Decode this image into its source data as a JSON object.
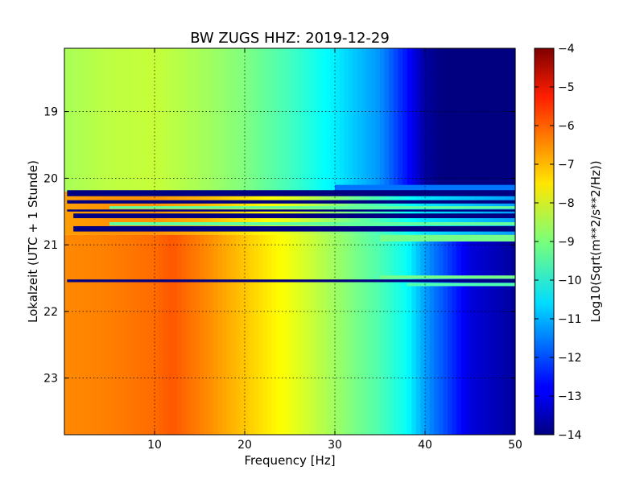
{
  "chart_data": {
    "type": "heatmap",
    "title": "BW ZUGS HHZ: 2019-12-29",
    "xlabel": "Frequency [Hz]",
    "ylabel": "Lokalzeit (UTC + 1 Stunde)",
    "xlim": [
      0,
      50
    ],
    "ylim": [
      18.05,
      23.85
    ],
    "y_inverted": true,
    "x_ticks": [
      10,
      20,
      30,
      40,
      50
    ],
    "y_ticks": [
      19,
      20,
      21,
      22,
      23
    ],
    "grid": true,
    "colormap": "jet",
    "colorbar": {
      "label": "Log10(Sqrt(m**2/s**2/Hz))",
      "range": [
        -14,
        -4
      ],
      "ticks": [
        -4,
        -5,
        -6,
        -7,
        -8,
        -9,
        -10,
        -11,
        -12,
        -13,
        -14
      ]
    },
    "profiles": [
      {
        "from": 18.05,
        "to": 20.2,
        "frequency": [
          0,
          5,
          10,
          15,
          20,
          25,
          30,
          35,
          38,
          40,
          42,
          50
        ],
        "value": [
          -8.6,
          -8.4,
          -8.3,
          -8.6,
          -9.0,
          -9.6,
          -10.4,
          -11.3,
          -12.6,
          -13.7,
          -14,
          -14
        ]
      },
      {
        "from": 20.2,
        "to": 20.85,
        "frequency": [
          0,
          5,
          10,
          15,
          20,
          25,
          30,
          35,
          40,
          50
        ],
        "value": [
          -6.8,
          -6.7,
          -6.7,
          -7.0,
          -7.5,
          -8.0,
          -8.8,
          -9.6,
          -10.5,
          -11.2
        ]
      },
      {
        "from": 20.85,
        "to": 23.85,
        "frequency": [
          0,
          5,
          10,
          12,
          15,
          20,
          25,
          30,
          35,
          38,
          40,
          43,
          45,
          50
        ],
        "value": [
          -6.6,
          -6.5,
          -6.3,
          -6.1,
          -6.5,
          -7.2,
          -7.9,
          -8.7,
          -9.5,
          -10.2,
          -11.2,
          -12.3,
          -13.1,
          -13.7
        ]
      }
    ],
    "gap_bands": [
      {
        "from": 20.18,
        "to": 20.27,
        "start_hz": 0.3
      },
      {
        "from": 20.33,
        "to": 20.38,
        "start_hz": 0.3
      },
      {
        "from": 20.47,
        "to": 20.5,
        "start_hz": 0.3
      },
      {
        "from": 20.53,
        "to": 20.6,
        "start_hz": 1
      },
      {
        "from": 20.72,
        "to": 20.8,
        "start_hz": 1
      },
      {
        "from": 21.52,
        "to": 21.56,
        "start_hz": 0.3
      }
    ],
    "highlight_bands": [
      {
        "from": 20.1,
        "to": 20.2,
        "from_hz": 30,
        "value": -11.6
      },
      {
        "from": 20.42,
        "to": 20.46,
        "from_hz": 5,
        "value": -9.3
      },
      {
        "from": 20.66,
        "to": 20.71,
        "from_hz": 5,
        "value": -9.3
      },
      {
        "from": 20.85,
        "to": 20.95,
        "from_hz": 35,
        "value": -9.1
      },
      {
        "from": 21.46,
        "to": 21.51,
        "from_hz": 35,
        "value": -9.1
      },
      {
        "from": 21.57,
        "to": 21.62,
        "from_hz": 38,
        "value": -9.5
      }
    ]
  }
}
